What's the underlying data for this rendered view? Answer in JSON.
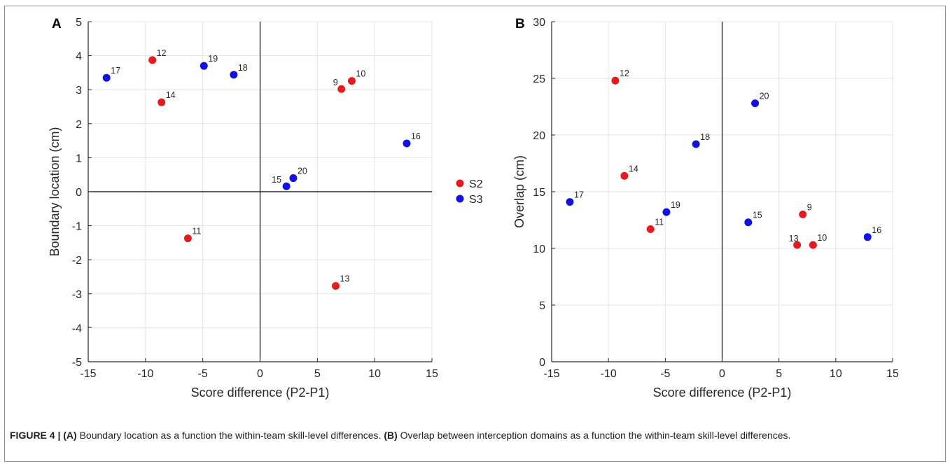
{
  "caption": {
    "prefix": "FIGURE 4 | ",
    "a_tag": "(A)",
    "a_text": " Boundary location as a function the within-team skill-level differences. ",
    "b_tag": "(B)",
    "b_text": " Overlap between interception domains as a function the within-team skill-level differences."
  },
  "colors": {
    "S2": "#e8191c",
    "S3": "#1212e0",
    "grid": "#e3e3e3",
    "axis": "#262626"
  },
  "legend": [
    {
      "name": "S2",
      "color": "#e8191c"
    },
    {
      "name": "S3",
      "color": "#1212e0"
    }
  ],
  "chart_data": [
    {
      "panel": "A",
      "type": "scatter",
      "xlabel": "Score difference (P2-P1)",
      "ylabel": "Boundary location (cm)",
      "xlim": [
        -15,
        15
      ],
      "ylim": [
        -5,
        5
      ],
      "xticks": [
        -15,
        -10,
        -5,
        0,
        5,
        10,
        15
      ],
      "yticks": [
        -5,
        -4,
        -3,
        -2,
        -1,
        0,
        1,
        2,
        3,
        4,
        5
      ],
      "grid": true,
      "series": [
        {
          "name": "S2",
          "points": [
            {
              "label": "12",
              "x": -9.4,
              "y": 3.87
            },
            {
              "label": "14",
              "x": -8.6,
              "y": 2.63
            },
            {
              "label": "11",
              "x": -6.3,
              "y": -1.37
            },
            {
              "label": "9",
              "x": 7.1,
              "y": 3.02
            },
            {
              "label": "10",
              "x": 8.0,
              "y": 3.26
            },
            {
              "label": "13",
              "x": 6.6,
              "y": -2.77
            }
          ]
        },
        {
          "name": "S3",
          "points": [
            {
              "label": "17",
              "x": -13.4,
              "y": 3.35
            },
            {
              "label": "19",
              "x": -4.9,
              "y": 3.7
            },
            {
              "label": "18",
              "x": -2.3,
              "y": 3.44
            },
            {
              "label": "15",
              "x": 2.3,
              "y": 0.16
            },
            {
              "label": "20",
              "x": 2.9,
              "y": 0.4
            },
            {
              "label": "16",
              "x": 12.8,
              "y": 1.42
            }
          ]
        }
      ]
    },
    {
      "panel": "B",
      "type": "scatter",
      "xlabel": "Score difference (P2-P1)",
      "ylabel": "Overlap (cm)",
      "xlim": [
        -15,
        15
      ],
      "ylim": [
        0,
        30
      ],
      "xticks": [
        -15,
        -10,
        -5,
        0,
        5,
        10,
        15
      ],
      "yticks": [
        0,
        5,
        10,
        15,
        20,
        25,
        30
      ],
      "grid": true,
      "series": [
        {
          "name": "S2",
          "points": [
            {
              "label": "12",
              "x": -9.4,
              "y": 24.8
            },
            {
              "label": "14",
              "x": -8.6,
              "y": 16.4
            },
            {
              "label": "11",
              "x": -6.3,
              "y": 11.7
            },
            {
              "label": "9",
              "x": 7.1,
              "y": 13.0
            },
            {
              "label": "13",
              "x": 6.6,
              "y": 10.3
            },
            {
              "label": "10",
              "x": 8.0,
              "y": 10.3
            }
          ]
        },
        {
          "name": "S3",
          "points": [
            {
              "label": "17",
              "x": -13.4,
              "y": 14.1
            },
            {
              "label": "19",
              "x": -4.9,
              "y": 13.2
            },
            {
              "label": "18",
              "x": -2.3,
              "y": 19.2
            },
            {
              "label": "20",
              "x": 2.9,
              "y": 22.8
            },
            {
              "label": "15",
              "x": 2.3,
              "y": 12.3
            },
            {
              "label": "16",
              "x": 12.8,
              "y": 11.0
            }
          ]
        }
      ]
    }
  ]
}
